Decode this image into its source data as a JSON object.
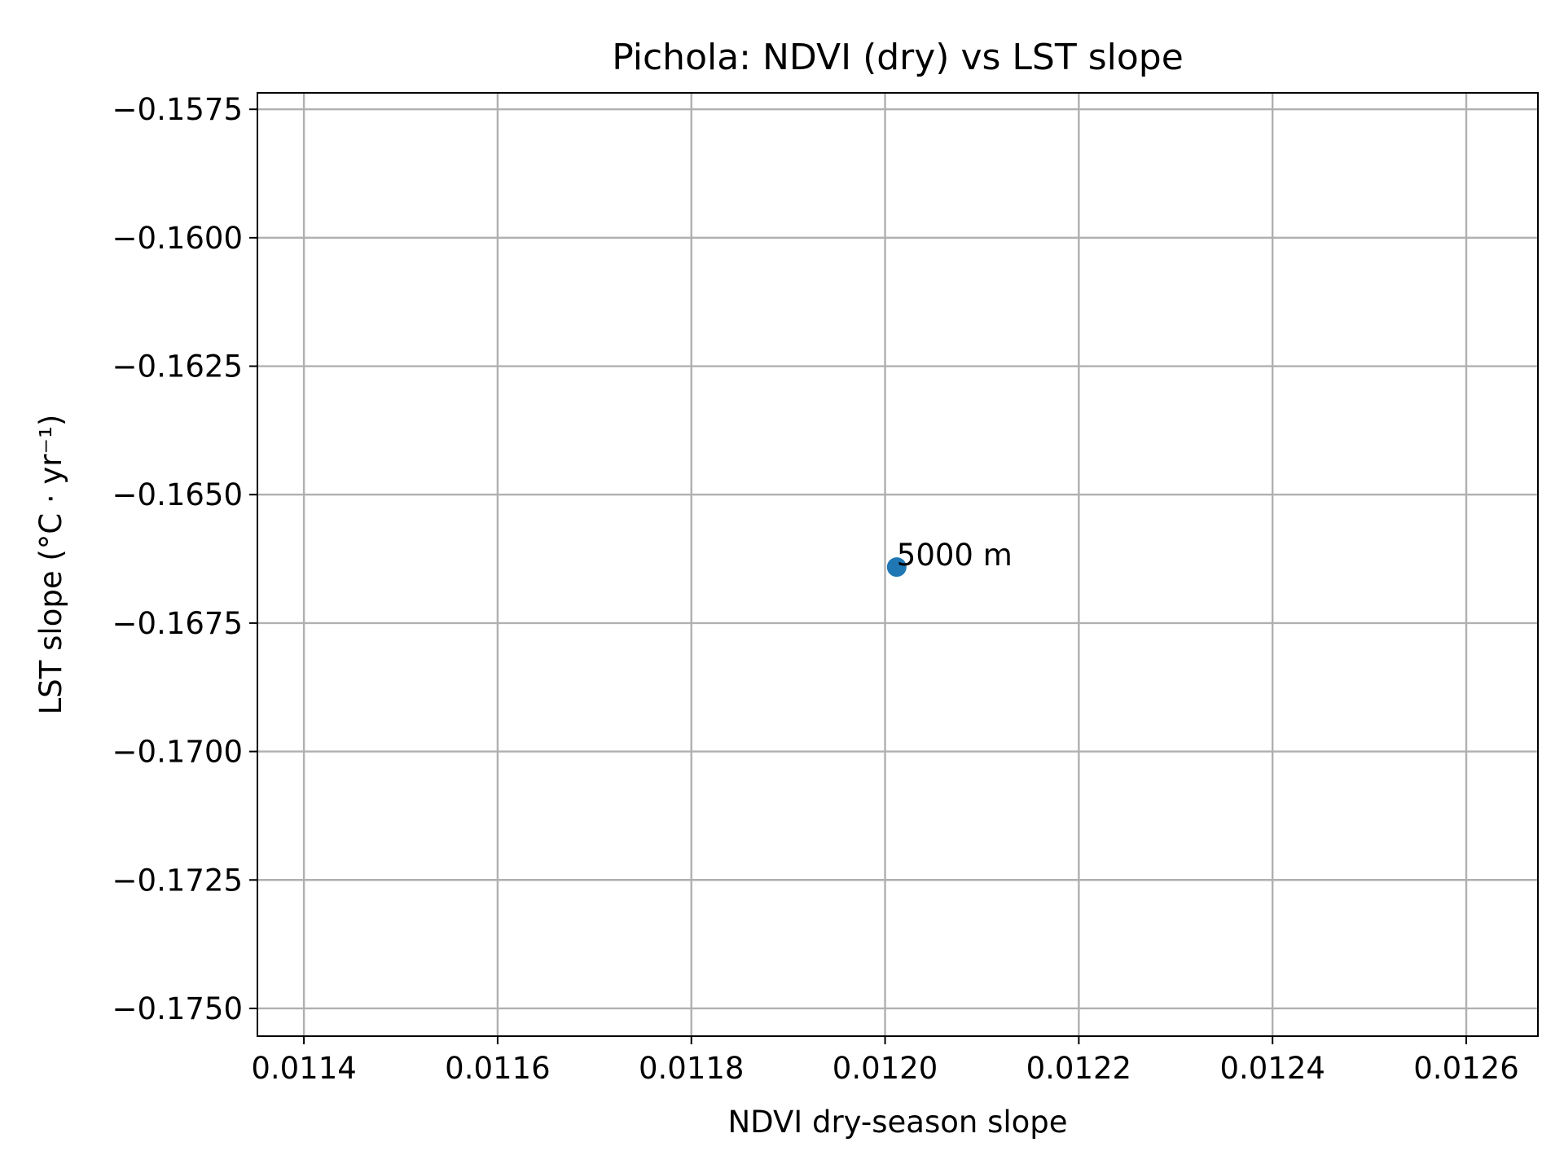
{
  "chart_data": {
    "type": "scatter",
    "title": "Pichola: NDVI (dry) vs LST slope",
    "xlabel": "NDVI dry-season slope",
    "ylabel": "LST slope (°C · yr⁻¹)",
    "xlim": [
      0.011352,
      0.012674
    ],
    "ylim": [
      -0.17554,
      -0.15718
    ],
    "x_ticks": [
      0.0114,
      0.0116,
      0.0118,
      0.012,
      0.0122,
      0.0124,
      0.0126
    ],
    "x_tick_labels": [
      "0.0114",
      "0.0116",
      "0.0118",
      "0.0120",
      "0.0122",
      "0.0124",
      "0.0126"
    ],
    "y_ticks": [
      -0.1575,
      -0.16,
      -0.1625,
      -0.165,
      -0.1675,
      -0.17,
      -0.1725,
      -0.175
    ],
    "y_tick_labels": [
      "−0.1575",
      "−0.1600",
      "−0.1625",
      "−0.1650",
      "−0.1675",
      "−0.1700",
      "−0.1725",
      "−0.1750"
    ],
    "grid": true,
    "points": [
      {
        "x": 0.012012,
        "y": -0.16641,
        "label": "5000 m"
      }
    ],
    "marker_color": "#1f77b4"
  }
}
